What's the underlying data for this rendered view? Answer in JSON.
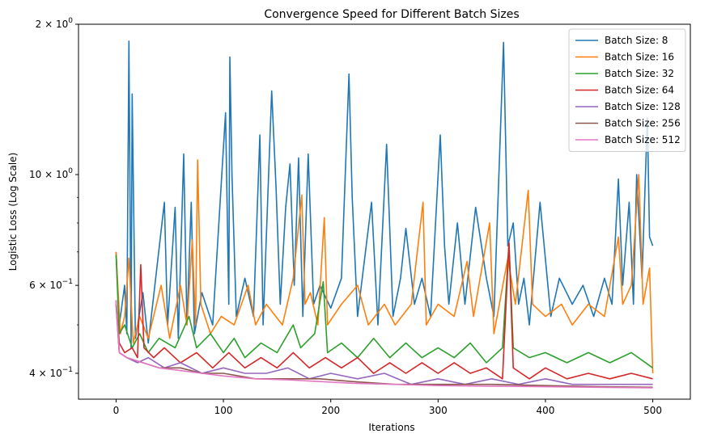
{
  "chart_data": {
    "type": "line",
    "title": "Convergence Speed for Different Batch Sizes",
    "xlabel": "Iterations",
    "ylabel": "Logistic Loss (Log Scale)",
    "yscale": "log",
    "xlim": [
      -35,
      535
    ],
    "ylim": [
      0.355,
      2.0
    ],
    "xticks": [
      0,
      100,
      200,
      300,
      400,
      500
    ],
    "yticks": [
      {
        "value": 0.4,
        "base": "4",
        "exp": "−1"
      },
      {
        "value": 0.6,
        "base": "6",
        "exp": "−1"
      },
      {
        "value": 1.0,
        "base": "10",
        "exp": "0"
      },
      {
        "value": 2.0,
        "base": "2",
        "exp": "0"
      }
    ],
    "minor_yticks": [
      0.5,
      0.7,
      0.8,
      0.9
    ],
    "legend_position": "top-right",
    "series": [
      {
        "name": "Batch Size: 8",
        "color": "#1f77b4",
        "points": [
          [
            0,
            0.7
          ],
          [
            3,
            0.5
          ],
          [
            8,
            0.6
          ],
          [
            10,
            0.48
          ],
          [
            12,
            1.85
          ],
          [
            14,
            0.45
          ],
          [
            15,
            1.45
          ],
          [
            18,
            0.47
          ],
          [
            25,
            0.58
          ],
          [
            30,
            0.46
          ],
          [
            45,
            0.88
          ],
          [
            48,
            0.5
          ],
          [
            55,
            0.86
          ],
          [
            58,
            0.47
          ],
          [
            63,
            1.1
          ],
          [
            66,
            0.5
          ],
          [
            70,
            0.88
          ],
          [
            73,
            0.48
          ],
          [
            80,
            0.58
          ],
          [
            90,
            0.5
          ],
          [
            102,
            1.33
          ],
          [
            105,
            0.55
          ],
          [
            106,
            1.72
          ],
          [
            108,
            0.99
          ],
          [
            112,
            0.52
          ],
          [
            120,
            0.62
          ],
          [
            128,
            0.52
          ],
          [
            134,
            1.2
          ],
          [
            137,
            0.5
          ],
          [
            145,
            1.47
          ],
          [
            149,
            0.95
          ],
          [
            153,
            0.55
          ],
          [
            158,
            0.86
          ],
          [
            162,
            1.05
          ],
          [
            166,
            0.6
          ],
          [
            170,
            1.08
          ],
          [
            174,
            0.52
          ],
          [
            179,
            1.1
          ],
          [
            184,
            0.55
          ],
          [
            190,
            0.6
          ],
          [
            200,
            0.54
          ],
          [
            210,
            0.62
          ],
          [
            217,
            1.59
          ],
          [
            220,
            0.9
          ],
          [
            225,
            0.52
          ],
          [
            238,
            0.88
          ],
          [
            244,
            0.5
          ],
          [
            252,
            1.15
          ],
          [
            258,
            0.52
          ],
          [
            265,
            0.62
          ],
          [
            270,
            0.78
          ],
          [
            278,
            0.55
          ],
          [
            285,
            0.62
          ],
          [
            293,
            0.52
          ],
          [
            302,
            1.2
          ],
          [
            306,
            0.72
          ],
          [
            310,
            0.55
          ],
          [
            318,
            0.8
          ],
          [
            325,
            0.55
          ],
          [
            335,
            0.86
          ],
          [
            345,
            0.62
          ],
          [
            352,
            0.52
          ],
          [
            361,
            1.84
          ],
          [
            365,
            0.72
          ],
          [
            370,
            0.8
          ],
          [
            375,
            0.55
          ],
          [
            380,
            0.62
          ],
          [
            385,
            0.5
          ],
          [
            395,
            0.88
          ],
          [
            405,
            0.52
          ],
          [
            413,
            0.62
          ],
          [
            425,
            0.55
          ],
          [
            435,
            0.6
          ],
          [
            445,
            0.52
          ],
          [
            455,
            0.62
          ],
          [
            462,
            0.55
          ],
          [
            468,
            0.98
          ],
          [
            472,
            0.6
          ],
          [
            478,
            0.88
          ],
          [
            482,
            0.55
          ],
          [
            485,
            1.0
          ],
          [
            490,
            0.62
          ],
          [
            495,
            1.3
          ],
          [
            497,
            0.75
          ],
          [
            500,
            0.72
          ]
        ]
      },
      {
        "name": "Batch Size: 16",
        "color": "#ff7f0e",
        "points": [
          [
            0,
            0.7
          ],
          [
            4,
            0.48
          ],
          [
            8,
            0.52
          ],
          [
            12,
            0.68
          ],
          [
            16,
            0.46
          ],
          [
            22,
            0.52
          ],
          [
            30,
            0.47
          ],
          [
            42,
            0.6
          ],
          [
            50,
            0.47
          ],
          [
            60,
            0.6
          ],
          [
            66,
            0.5
          ],
          [
            71,
            0.74
          ],
          [
            74,
            0.5
          ],
          [
            76,
            1.07
          ],
          [
            79,
            0.55
          ],
          [
            88,
            0.48
          ],
          [
            98,
            0.52
          ],
          [
            110,
            0.5
          ],
          [
            123,
            0.6
          ],
          [
            130,
            0.5
          ],
          [
            140,
            0.55
          ],
          [
            155,
            0.5
          ],
          [
            165,
            0.62
          ],
          [
            173,
            0.91
          ],
          [
            176,
            0.55
          ],
          [
            181,
            0.58
          ],
          [
            188,
            0.5
          ],
          [
            194,
            0.82
          ],
          [
            197,
            0.5
          ],
          [
            210,
            0.55
          ],
          [
            225,
            0.6
          ],
          [
            235,
            0.5
          ],
          [
            250,
            0.55
          ],
          [
            260,
            0.5
          ],
          [
            275,
            0.55
          ],
          [
            286,
            0.88
          ],
          [
            289,
            0.5
          ],
          [
            300,
            0.55
          ],
          [
            315,
            0.52
          ],
          [
            327,
            0.67
          ],
          [
            333,
            0.52
          ],
          [
            348,
            0.8
          ],
          [
            352,
            0.48
          ],
          [
            365,
            0.68
          ],
          [
            372,
            0.55
          ],
          [
            384,
            0.93
          ],
          [
            388,
            0.55
          ],
          [
            400,
            0.52
          ],
          [
            415,
            0.55
          ],
          [
            425,
            0.5
          ],
          [
            440,
            0.55
          ],
          [
            455,
            0.52
          ],
          [
            468,
            0.75
          ],
          [
            472,
            0.55
          ],
          [
            480,
            0.6
          ],
          [
            487,
            1.0
          ],
          [
            491,
            0.55
          ],
          [
            497,
            0.65
          ],
          [
            500,
            0.4
          ]
        ]
      },
      {
        "name": "Batch Size: 32",
        "color": "#2ca02c",
        "points": [
          [
            0,
            0.69
          ],
          [
            3,
            0.48
          ],
          [
            8,
            0.5
          ],
          [
            15,
            0.45
          ],
          [
            22,
            0.48
          ],
          [
            30,
            0.44
          ],
          [
            40,
            0.47
          ],
          [
            55,
            0.45
          ],
          [
            68,
            0.52
          ],
          [
            75,
            0.45
          ],
          [
            88,
            0.48
          ],
          [
            100,
            0.44
          ],
          [
            110,
            0.47
          ],
          [
            120,
            0.43
          ],
          [
            135,
            0.46
          ],
          [
            150,
            0.44
          ],
          [
            165,
            0.5
          ],
          [
            172,
            0.45
          ],
          [
            185,
            0.48
          ],
          [
            193,
            0.61
          ],
          [
            197,
            0.44
          ],
          [
            210,
            0.46
          ],
          [
            225,
            0.43
          ],
          [
            240,
            0.47
          ],
          [
            255,
            0.43
          ],
          [
            270,
            0.46
          ],
          [
            285,
            0.43
          ],
          [
            300,
            0.45
          ],
          [
            315,
            0.43
          ],
          [
            330,
            0.46
          ],
          [
            345,
            0.42
          ],
          [
            360,
            0.45
          ],
          [
            366,
            0.73
          ],
          [
            370,
            0.45
          ],
          [
            385,
            0.43
          ],
          [
            400,
            0.44
          ],
          [
            420,
            0.42
          ],
          [
            440,
            0.44
          ],
          [
            460,
            0.42
          ],
          [
            480,
            0.44
          ],
          [
            500,
            0.41
          ]
        ]
      },
      {
        "name": "Batch Size: 64",
        "color": "#d62728",
        "points": [
          [
            0,
            0.56
          ],
          [
            3,
            0.46
          ],
          [
            8,
            0.44
          ],
          [
            15,
            0.45
          ],
          [
            20,
            0.43
          ],
          [
            23,
            0.66
          ],
          [
            26,
            0.45
          ],
          [
            35,
            0.43
          ],
          [
            45,
            0.45
          ],
          [
            60,
            0.42
          ],
          [
            75,
            0.44
          ],
          [
            90,
            0.41
          ],
          [
            105,
            0.44
          ],
          [
            120,
            0.41
          ],
          [
            135,
            0.43
          ],
          [
            150,
            0.41
          ],
          [
            165,
            0.44
          ],
          [
            180,
            0.41
          ],
          [
            195,
            0.43
          ],
          [
            210,
            0.41
          ],
          [
            225,
            0.43
          ],
          [
            240,
            0.4
          ],
          [
            255,
            0.42
          ],
          [
            270,
            0.4
          ],
          [
            285,
            0.42
          ],
          [
            300,
            0.4
          ],
          [
            315,
            0.42
          ],
          [
            330,
            0.4
          ],
          [
            345,
            0.41
          ],
          [
            360,
            0.39
          ],
          [
            366,
            0.73
          ],
          [
            370,
            0.41
          ],
          [
            385,
            0.39
          ],
          [
            400,
            0.41
          ],
          [
            420,
            0.39
          ],
          [
            440,
            0.4
          ],
          [
            460,
            0.39
          ],
          [
            480,
            0.4
          ],
          [
            500,
            0.39
          ]
        ]
      },
      {
        "name": "Batch Size: 128",
        "color": "#9467bd",
        "points": [
          [
            0,
            0.55
          ],
          [
            3,
            0.44
          ],
          [
            10,
            0.43
          ],
          [
            20,
            0.42
          ],
          [
            30,
            0.43
          ],
          [
            45,
            0.41
          ],
          [
            60,
            0.42
          ],
          [
            80,
            0.4
          ],
          [
            100,
            0.41
          ],
          [
            120,
            0.4
          ],
          [
            140,
            0.4
          ],
          [
            160,
            0.41
          ],
          [
            180,
            0.39
          ],
          [
            200,
            0.4
          ],
          [
            225,
            0.39
          ],
          [
            250,
            0.4
          ],
          [
            275,
            0.38
          ],
          [
            300,
            0.39
          ],
          [
            325,
            0.38
          ],
          [
            350,
            0.39
          ],
          [
            375,
            0.38
          ],
          [
            400,
            0.39
          ],
          [
            425,
            0.38
          ],
          [
            450,
            0.38
          ],
          [
            475,
            0.38
          ],
          [
            500,
            0.38
          ]
        ]
      },
      {
        "name": "Batch Size: 256",
        "color": "#8c564b",
        "points": [
          [
            0,
            0.55
          ],
          [
            3,
            0.44
          ],
          [
            10,
            0.43
          ],
          [
            25,
            0.42
          ],
          [
            40,
            0.41
          ],
          [
            60,
            0.41
          ],
          [
            80,
            0.4
          ],
          [
            100,
            0.4
          ],
          [
            130,
            0.39
          ],
          [
            160,
            0.39
          ],
          [
            190,
            0.39
          ],
          [
            220,
            0.385
          ],
          [
            260,
            0.38
          ],
          [
            300,
            0.38
          ],
          [
            350,
            0.38
          ],
          [
            400,
            0.378
          ],
          [
            450,
            0.376
          ],
          [
            500,
            0.375
          ]
        ]
      },
      {
        "name": "Batch Size: 512",
        "color": "#e377c2",
        "points": [
          [
            0,
            0.56
          ],
          [
            3,
            0.44
          ],
          [
            10,
            0.43
          ],
          [
            25,
            0.42
          ],
          [
            40,
            0.41
          ],
          [
            60,
            0.405
          ],
          [
            80,
            0.4
          ],
          [
            100,
            0.395
          ],
          [
            130,
            0.39
          ],
          [
            160,
            0.388
          ],
          [
            190,
            0.385
          ],
          [
            220,
            0.382
          ],
          [
            260,
            0.38
          ],
          [
            300,
            0.378
          ],
          [
            350,
            0.377
          ],
          [
            400,
            0.376
          ],
          [
            450,
            0.375
          ],
          [
            500,
            0.374
          ]
        ]
      }
    ]
  }
}
